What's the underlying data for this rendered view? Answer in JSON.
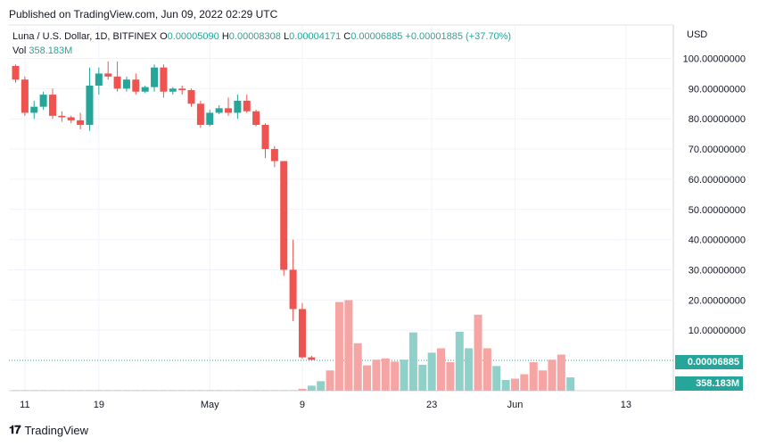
{
  "published": "Published on TradingView.com, Jun 09, 2022 02:29 UTC",
  "legend": {
    "symbol": "Luna / U.S. Dollar, 1D, BITFINEX",
    "o_label": "O",
    "o_value": "0.00005090",
    "h_label": "H",
    "h_value": "0.00008308",
    "l_label": "L",
    "l_value": "0.00004171",
    "c_label": "C",
    "c_value": "0.00006885",
    "change": "+0.00001885 (+37.70%)",
    "vol_label": "Vol",
    "vol_value": "358.183M"
  },
  "currency": "USD",
  "price_label": "0.00006885",
  "volume_label": "358.183M",
  "brand": "TradingView",
  "colors": {
    "up": "#26a69a",
    "down": "#ef5350",
    "vol_up": "#8fd1c9",
    "vol_down": "#f5a5a3",
    "grid": "#f0f3fa"
  },
  "chart_data": {
    "type": "candlestick",
    "y_axis_ticks": [
      "100.00000000",
      "90.00000000",
      "80.00000000",
      "70.00000000",
      "60.00000000",
      "50.00000000",
      "40.00000000",
      "30.00000000",
      "20.00000000",
      "10.00000000"
    ],
    "y_tick_values": [
      100,
      90,
      80,
      70,
      60,
      50,
      40,
      30,
      20,
      10
    ],
    "x_axis_ticks": [
      "11",
      "19",
      "May",
      "9",
      "23",
      "Jun",
      "13"
    ],
    "x_tick_index": [
      1,
      9,
      21,
      31,
      45,
      54,
      66
    ],
    "ylim": [
      0,
      105
    ],
    "candles": [
      {
        "o": 97.5,
        "h": 98,
        "l": 92,
        "c": 93
      },
      {
        "o": 93,
        "h": 94,
        "l": 81,
        "c": 82
      },
      {
        "o": 82,
        "h": 86,
        "l": 80,
        "c": 84
      },
      {
        "o": 84,
        "h": 89,
        "l": 83,
        "c": 88
      },
      {
        "o": 88,
        "h": 90,
        "l": 80,
        "c": 81
      },
      {
        "o": 81,
        "h": 82.5,
        "l": 79,
        "c": 80.5
      },
      {
        "o": 80.5,
        "h": 81,
        "l": 78.5,
        "c": 79.5
      },
      {
        "o": 79.5,
        "h": 82,
        "l": 76.5,
        "c": 78
      },
      {
        "o": 78,
        "h": 97,
        "l": 76,
        "c": 91
      },
      {
        "o": 91,
        "h": 97,
        "l": 88,
        "c": 95
      },
      {
        "o": 95,
        "h": 99,
        "l": 93,
        "c": 94
      },
      {
        "o": 94,
        "h": 99,
        "l": 89,
        "c": 90
      },
      {
        "o": 90,
        "h": 94,
        "l": 89,
        "c": 93
      },
      {
        "o": 93,
        "h": 95,
        "l": 88,
        "c": 89
      },
      {
        "o": 89,
        "h": 91,
        "l": 88.5,
        "c": 90.5
      },
      {
        "o": 90.5,
        "h": 98,
        "l": 89,
        "c": 97
      },
      {
        "o": 97,
        "h": 98,
        "l": 87,
        "c": 89
      },
      {
        "o": 89,
        "h": 90.5,
        "l": 88,
        "c": 90
      },
      {
        "o": 90,
        "h": 91,
        "l": 88,
        "c": 89.5
      },
      {
        "o": 89.5,
        "h": 90,
        "l": 84,
        "c": 85
      },
      {
        "o": 85,
        "h": 86,
        "l": 77,
        "c": 78
      },
      {
        "o": 78,
        "h": 83,
        "l": 77.5,
        "c": 82
      },
      {
        "o": 82,
        "h": 84.5,
        "l": 81.5,
        "c": 83.5
      },
      {
        "o": 83.5,
        "h": 87,
        "l": 81,
        "c": 82
      },
      {
        "o": 82,
        "h": 88,
        "l": 80,
        "c": 86
      },
      {
        "o": 86,
        "h": 88,
        "l": 82,
        "c": 82.5
      },
      {
        "o": 82.5,
        "h": 83,
        "l": 77.5,
        "c": 78
      },
      {
        "o": 78,
        "h": 78.5,
        "l": 67,
        "c": 70
      },
      {
        "o": 70,
        "h": 71,
        "l": 64,
        "c": 66
      },
      {
        "o": 66,
        "h": 66,
        "l": 28,
        "c": 30
      },
      {
        "o": 30,
        "h": 40,
        "l": 13,
        "c": 17
      },
      {
        "o": 17,
        "h": 19,
        "l": 0.5,
        "c": 1
      },
      {
        "o": 1,
        "h": 1.5,
        "l": 0.1,
        "c": 0.2
      }
    ],
    "volumes": [
      0,
      0,
      0,
      0,
      0,
      0,
      0,
      0,
      0,
      0,
      0,
      0,
      0,
      0,
      0,
      0,
      0,
      0,
      0,
      0,
      0,
      0,
      0,
      0,
      0,
      0,
      0,
      0,
      0,
      0,
      0,
      0.3,
      0.8,
      1.5,
      3.2,
      14,
      14.3,
      7.5,
      4,
      4.9,
      5.1,
      4.6,
      4.9,
      9.2,
      4.1,
      6,
      6.7,
      4.5,
      9.3,
      6.7,
      12,
      6.7,
      3.9,
      1.7,
      1.9,
      2.6,
      4.5,
      3.2,
      4.9,
      5.7,
      2.1
    ],
    "volume_up": [
      false,
      false,
      false,
      false,
      false,
      false,
      false,
      false,
      false,
      false,
      false,
      false,
      false,
      false,
      false,
      false,
      false,
      false,
      false,
      false,
      false,
      false,
      false,
      false,
      false,
      false,
      false,
      false,
      false,
      false,
      false,
      false,
      true,
      true,
      false,
      false,
      false,
      false,
      false,
      false,
      false,
      false,
      true,
      true,
      true,
      true,
      false,
      false,
      true,
      true,
      false,
      false,
      true,
      true,
      false,
      false,
      false,
      false,
      false,
      false,
      true
    ],
    "last_price": 6.885e-05
  }
}
